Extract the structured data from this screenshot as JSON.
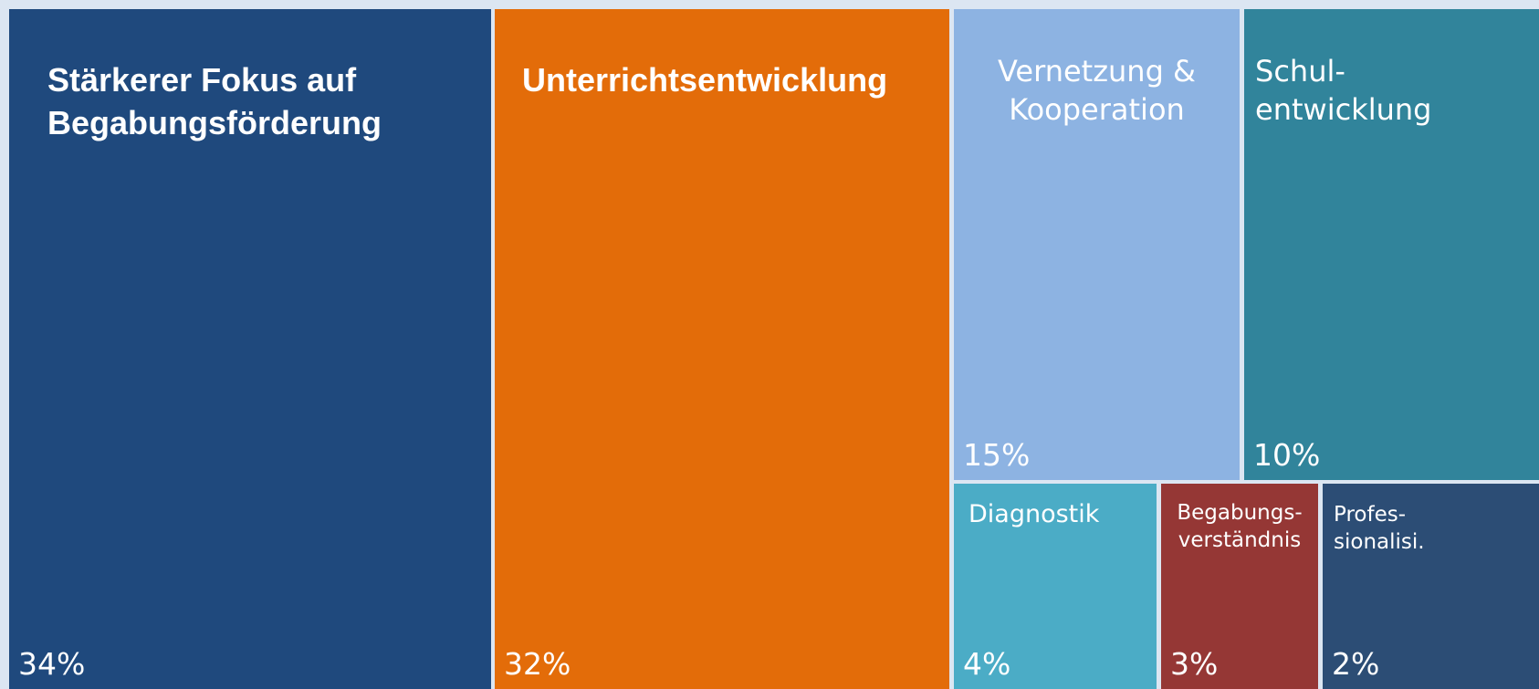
{
  "chart_data": {
    "type": "treemap",
    "categories": [
      "Stärkerer Fokus auf\nBegabungsförderung",
      "Unterrichtsentwicklung",
      "Vernetzung &\nKooperation",
      "Schul-\nentwicklung",
      "Diagnostik",
      "Begabungs-\nverständnis",
      "Profes-\nsionalisi."
    ],
    "values": [
      34,
      32,
      15,
      10,
      4,
      3,
      2
    ],
    "value_labels": [
      "34%",
      "32%",
      "15%",
      "10%",
      "4%",
      "3%",
      "2%"
    ],
    "colors": [
      "#1f497d",
      "#e36c09",
      "#8db3e2",
      "#31849b",
      "#4bacc6",
      "#953735",
      "#2c4d75"
    ]
  }
}
